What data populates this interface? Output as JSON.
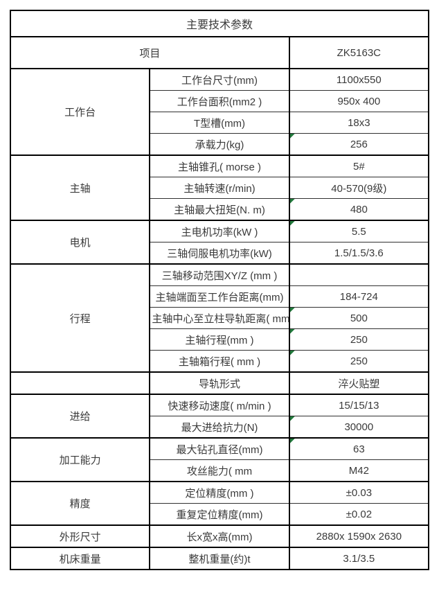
{
  "title": "主要技术参数",
  "header": {
    "item_label": "项目",
    "model": "ZK5163C"
  },
  "colors": {
    "outer_border": "#000000",
    "inner_border": "#2f2f2f",
    "text": "#3a3a3a",
    "marker_green": "#217a3c",
    "background": "#ffffff"
  },
  "groups": [
    {
      "name": "工作台",
      "rows": [
        {
          "param": "工作台尺寸(mm)",
          "value": "1100x550",
          "marker": false
        },
        {
          "param": "工作台面积(mm2 )",
          "value": "950x 400",
          "marker": false
        },
        {
          "param": "T型槽(mm)",
          "value": "18x3",
          "marker": false
        },
        {
          "param": "承载力(kg)",
          "value": "256",
          "marker": true
        }
      ]
    },
    {
      "name": "主轴",
      "rows": [
        {
          "param": "主轴锥孔( morse )",
          "value": "5#",
          "marker": false
        },
        {
          "param": "主轴转速(r/min)",
          "value": "40-570(9级)",
          "marker": false
        },
        {
          "param": "主轴最大扭矩(N. m)",
          "value": "480",
          "marker": true
        }
      ]
    },
    {
      "name": "电机",
      "rows": [
        {
          "param": "主电机功率(kW )",
          "value": "5.5",
          "marker": true
        },
        {
          "param": "三轴伺服电机功率(kW)",
          "value": "1.5/1.5/3.6",
          "marker": false
        }
      ]
    },
    {
      "name": "行程",
      "rows": [
        {
          "param": "三轴移动范围XY/Z (mm )",
          "value": "",
          "marker": false
        },
        {
          "param": "主轴端面至工作台距离(mm)",
          "value": "184-724",
          "marker": false
        },
        {
          "param": "主轴中心至立柱导轨距离( mm)",
          "value": "500",
          "marker": true
        },
        {
          "param": "主轴行程(mm )",
          "value": "250",
          "marker": true
        },
        {
          "param": "主轴箱行程( mm )",
          "value": "250",
          "marker": true
        }
      ]
    },
    {
      "name": "",
      "rows": [
        {
          "param": "导轨形式",
          "value": "淬火贴塑",
          "marker": false
        }
      ]
    },
    {
      "name": "进给",
      "rows": [
        {
          "param": "快速移动速度( m/min )",
          "value": "15/15/13",
          "marker": false
        },
        {
          "param": "最大进给抗力(N)",
          "value": "30000",
          "marker": true
        }
      ]
    },
    {
      "name": "加工能力",
      "rows": [
        {
          "param": "最大钻孔直径(mm)",
          "value": "63",
          "marker": true
        },
        {
          "param": "攻丝能力( mm",
          "value": "M42",
          "marker": false
        }
      ]
    },
    {
      "name": "精度",
      "rows": [
        {
          "param": "定位精度(mm )",
          "value": "±0.03",
          "marker": false
        },
        {
          "param": "重复定位精度(mm)",
          "value": "±0.02",
          "marker": false
        }
      ]
    },
    {
      "name": "外形尺寸",
      "rows": [
        {
          "param": "长x宽x高(mm)",
          "value": "2880x 1590x 2630",
          "marker": false
        }
      ]
    },
    {
      "name": "机床重量",
      "rows": [
        {
          "param": "整机重量(约)t",
          "value": "3.1/3.5",
          "marker": false
        }
      ]
    }
  ]
}
